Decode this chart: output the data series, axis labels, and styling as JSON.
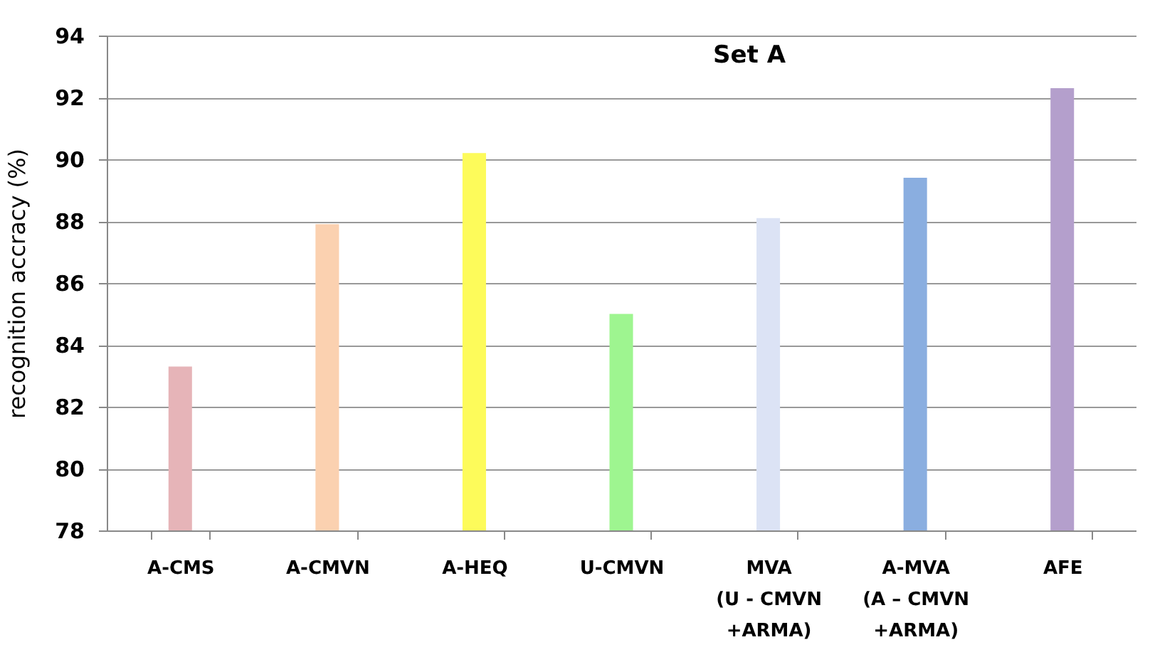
{
  "chart_data": {
    "type": "bar",
    "title": "Set A",
    "ylabel": "recognition accracy (%)",
    "categories": [
      "A-CMS",
      "A-CMVN",
      "A-HEQ",
      "U-CMVN",
      "MVA\n(U - CMVN\n+ARMA)",
      "A-MVA\n(A – CMVN\n+ARMA)",
      "AFE"
    ],
    "values": [
      83.3,
      87.9,
      90.2,
      85.0,
      88.1,
      89.4,
      92.3
    ],
    "colors": [
      "#e6b4b8",
      "#fbd1b0",
      "#fdfb5a",
      "#9ef590",
      "#dce3f5",
      "#8aaee0",
      "#b49fcc"
    ],
    "ylim": [
      78,
      94
    ],
    "yticks": [
      78,
      80,
      82,
      84,
      86,
      88,
      90,
      92,
      94
    ],
    "grid": "y"
  }
}
